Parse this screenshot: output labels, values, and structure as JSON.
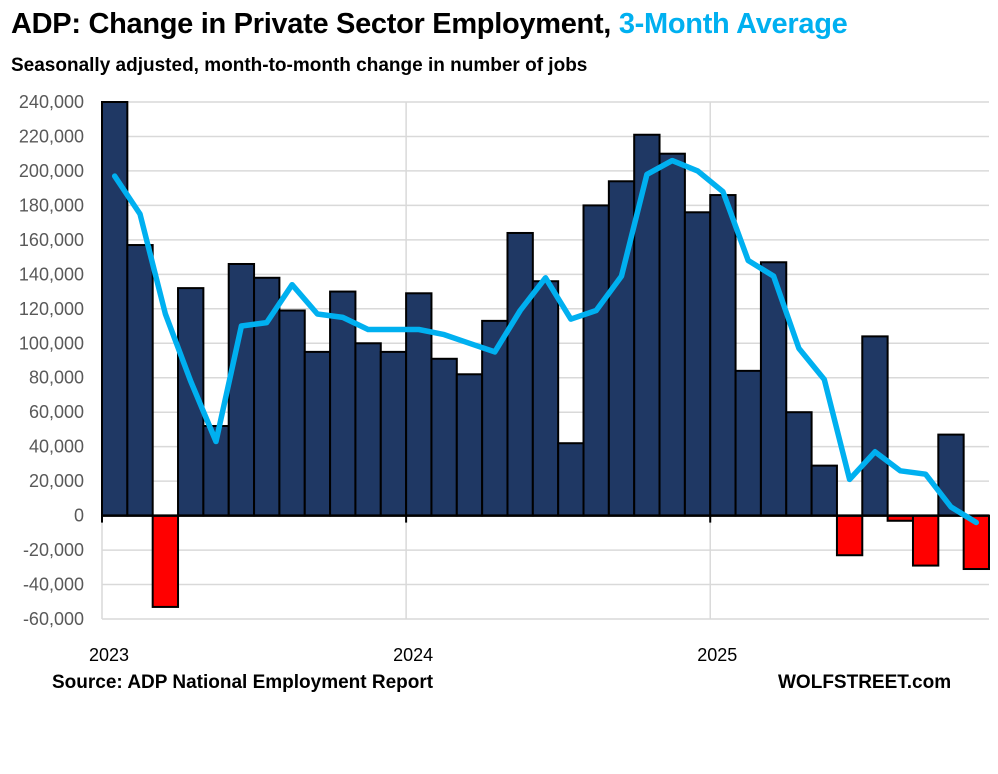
{
  "title": {
    "main": "ADP: Change in Private Sector Employment,",
    "accent": "3-Month Average",
    "accent_color": "#00b0f0"
  },
  "subtitle": "Seasonally adjusted, month-to-month change in number of jobs",
  "footer": {
    "source": "Source: ADP National Employment Report",
    "brand": "WOLFSTREET.com"
  },
  "chart_data": {
    "type": "bar",
    "title": "ADP: Change in Private Sector Employment, 3-Month Average",
    "subtitle": "Seasonally adjusted, month-to-month change in number of jobs",
    "xlabel": "",
    "ylabel": "",
    "ylim": [
      -60000,
      240000
    ],
    "ytick_step": 20000,
    "ytick_labels": [
      "240,000",
      "220,000",
      "200,000",
      "180,000",
      "160,000",
      "140,000",
      "120,000",
      "100,000",
      "80,000",
      "60,000",
      "40,000",
      "20,000",
      "0",
      "-20,000",
      "-40,000",
      "-60,000"
    ],
    "xtick_labels": [
      {
        "label": "2023",
        "index": 0
      },
      {
        "label": "2024",
        "index": 12
      },
      {
        "label": "2025",
        "index": 24
      }
    ],
    "grid": true,
    "legend": "none",
    "categories": [
      "2023-01",
      "2023-02",
      "2023-03",
      "2023-04",
      "2023-05",
      "2023-06",
      "2023-07",
      "2023-08",
      "2023-09",
      "2023-10",
      "2023-11",
      "2023-12",
      "2024-01",
      "2024-02",
      "2024-03",
      "2024-04",
      "2024-05",
      "2024-06",
      "2024-07",
      "2024-08",
      "2024-09",
      "2024-10",
      "2024-11",
      "2024-12",
      "2025-01",
      "2025-02",
      "2025-03",
      "2025-04",
      "2025-05",
      "2025-06",
      "2025-07",
      "2025-08",
      "2025-09",
      "2025-10",
      "2025-11"
    ],
    "series": [
      {
        "name": "Monthly change",
        "type": "bar",
        "color_positive": "#1f3864",
        "color_negative": "#ff0000",
        "values": [
          250000,
          157000,
          -53000,
          132000,
          52000,
          146000,
          138000,
          119000,
          95000,
          130000,
          100000,
          95000,
          129000,
          91000,
          82000,
          113000,
          164000,
          136000,
          42000,
          180000,
          194000,
          221000,
          210000,
          176000,
          186000,
          84000,
          147000,
          60000,
          29000,
          -23000,
          104000,
          -3000,
          -29000,
          47000,
          -31000
        ]
      },
      {
        "name": "3-Month Average",
        "type": "line",
        "color": "#00b0f0",
        "values": [
          197000,
          175000,
          117000,
          78000,
          43000,
          110000,
          112000,
          134000,
          117000,
          115000,
          108000,
          108000,
          108000,
          105000,
          100000,
          95000,
          119000,
          138000,
          114000,
          119000,
          139000,
          198000,
          206000,
          200000,
          188000,
          148000,
          139000,
          97000,
          79000,
          21000,
          37000,
          26000,
          24000,
          5000,
          -4000
        ]
      }
    ]
  }
}
